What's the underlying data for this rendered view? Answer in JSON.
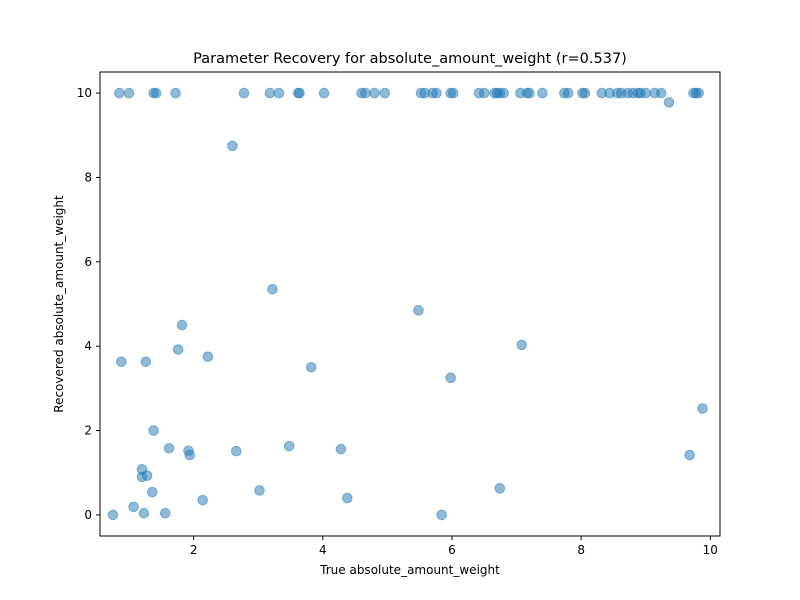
{
  "chart_data": {
    "type": "scatter",
    "title": "Parameter Recovery for absolute_amount_weight (r=0.537)",
    "xlabel": "True absolute_amount_weight",
    "ylabel": "Recovered absolute_amount_weight",
    "xlim": [
      0.55,
      10.15
    ],
    "ylim": [
      -0.5,
      10.5
    ],
    "xticks": [
      2,
      4,
      6,
      8,
      10
    ],
    "yticks": [
      0,
      2,
      4,
      6,
      8,
      10
    ],
    "grid": false,
    "point_color": "#1f77b4",
    "point_alpha": 0.5,
    "points": [
      [
        0.85,
        10.0
      ],
      [
        1.0,
        10.0
      ],
      [
        1.38,
        10.0
      ],
      [
        1.42,
        10.0
      ],
      [
        1.72,
        10.0
      ],
      [
        2.78,
        10.0
      ],
      [
        3.18,
        10.0
      ],
      [
        3.32,
        10.0
      ],
      [
        3.62,
        10.0
      ],
      [
        3.64,
        10.0
      ],
      [
        4.02,
        10.0
      ],
      [
        4.6,
        10.0
      ],
      [
        4.66,
        10.0
      ],
      [
        4.8,
        10.0
      ],
      [
        4.96,
        10.0
      ],
      [
        5.52,
        10.0
      ],
      [
        5.58,
        10.0
      ],
      [
        5.7,
        10.0
      ],
      [
        5.76,
        10.0
      ],
      [
        5.98,
        10.0
      ],
      [
        6.02,
        10.0
      ],
      [
        6.42,
        10.0
      ],
      [
        6.5,
        10.0
      ],
      [
        6.66,
        10.0
      ],
      [
        6.7,
        10.0
      ],
      [
        6.74,
        10.0
      ],
      [
        6.8,
        10.0
      ],
      [
        7.06,
        10.0
      ],
      [
        7.16,
        10.0
      ],
      [
        7.2,
        10.0
      ],
      [
        7.4,
        10.0
      ],
      [
        7.74,
        10.0
      ],
      [
        7.8,
        10.0
      ],
      [
        8.02,
        10.0
      ],
      [
        8.06,
        10.0
      ],
      [
        8.32,
        10.0
      ],
      [
        8.44,
        10.0
      ],
      [
        8.56,
        10.0
      ],
      [
        8.62,
        10.0
      ],
      [
        8.72,
        10.0
      ],
      [
        8.8,
        10.0
      ],
      [
        8.88,
        10.0
      ],
      [
        8.92,
        10.0
      ],
      [
        9.0,
        10.0
      ],
      [
        9.14,
        10.0
      ],
      [
        9.24,
        10.0
      ],
      [
        9.74,
        10.0
      ],
      [
        9.78,
        10.0
      ],
      [
        9.82,
        10.0
      ],
      [
        9.36,
        9.78
      ],
      [
        2.6,
        8.75
      ],
      [
        3.22,
        5.35
      ],
      [
        5.48,
        4.85
      ],
      [
        1.82,
        4.5
      ],
      [
        7.08,
        4.03
      ],
      [
        1.76,
        3.92
      ],
      [
        2.22,
        3.75
      ],
      [
        0.88,
        3.63
      ],
      [
        1.26,
        3.63
      ],
      [
        3.82,
        3.5
      ],
      [
        5.98,
        3.25
      ],
      [
        9.88,
        2.52
      ],
      [
        1.38,
        2.0
      ],
      [
        3.48,
        1.63
      ],
      [
        1.62,
        1.58
      ],
      [
        4.28,
        1.56
      ],
      [
        1.92,
        1.52
      ],
      [
        2.66,
        1.51
      ],
      [
        1.94,
        1.42
      ],
      [
        9.68,
        1.42
      ],
      [
        1.2,
        1.08
      ],
      [
        1.28,
        0.93
      ],
      [
        1.2,
        0.9
      ],
      [
        6.74,
        0.63
      ],
      [
        3.02,
        0.58
      ],
      [
        1.36,
        0.54
      ],
      [
        4.38,
        0.4
      ],
      [
        2.14,
        0.35
      ],
      [
        1.07,
        0.19
      ],
      [
        1.23,
        0.04
      ],
      [
        1.56,
        0.04
      ],
      [
        0.75,
        0.0
      ],
      [
        5.84,
        0.0
      ]
    ]
  }
}
